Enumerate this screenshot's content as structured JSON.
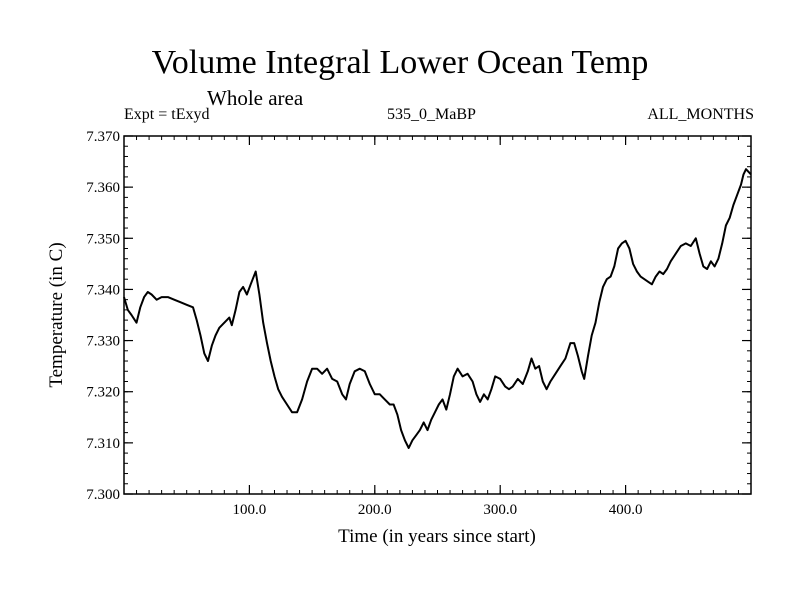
{
  "chart_data": {
    "type": "line",
    "title": "Volume Integral Lower Ocean Temp",
    "subtitle": "Whole area",
    "header_left": "Expt = tExyd",
    "header_center": "535_0_MaBP",
    "header_right": "ALL_MONTHS",
    "xlabel": "Time (in years since start)",
    "ylabel": "Temperature (in C)",
    "xlim": [
      0,
      500
    ],
    "ylim": [
      7.3,
      7.37
    ],
    "x_ticks": [
      100,
      200,
      300,
      400
    ],
    "x_tick_labels": [
      "100.0",
      "200.0",
      "300.0",
      "400.0"
    ],
    "y_ticks": [
      7.3,
      7.31,
      7.32,
      7.33,
      7.34,
      7.35,
      7.36,
      7.37
    ],
    "y_tick_labels": [
      "7.300",
      "7.310",
      "7.320",
      "7.330",
      "7.340",
      "7.350",
      "7.360",
      "7.370"
    ],
    "grid": false,
    "series": [
      {
        "line_color": "#000000",
        "points": [
          [
            0,
            7.3385
          ],
          [
            3,
            7.336
          ],
          [
            6,
            7.335
          ],
          [
            10,
            7.3335
          ],
          [
            13,
            7.3365
          ],
          [
            16,
            7.3385
          ],
          [
            19,
            7.3395
          ],
          [
            22,
            7.339
          ],
          [
            26,
            7.338
          ],
          [
            30,
            7.3385
          ],
          [
            35,
            7.3385
          ],
          [
            40,
            7.338
          ],
          [
            45,
            7.3375
          ],
          [
            50,
            7.337
          ],
          [
            55,
            7.3365
          ],
          [
            58,
            7.334
          ],
          [
            61,
            7.331
          ],
          [
            64,
            7.3275
          ],
          [
            67,
            7.326
          ],
          [
            70,
            7.329
          ],
          [
            73,
            7.331
          ],
          [
            76,
            7.3325
          ],
          [
            80,
            7.3335
          ],
          [
            84,
            7.3345
          ],
          [
            86,
            7.333
          ],
          [
            89,
            7.336
          ],
          [
            92,
            7.3395
          ],
          [
            95,
            7.3405
          ],
          [
            98,
            7.339
          ],
          [
            101,
            7.341
          ],
          [
            105,
            7.3435
          ],
          [
            108,
            7.339
          ],
          [
            111,
            7.3335
          ],
          [
            114,
            7.3295
          ],
          [
            117,
            7.326
          ],
          [
            120,
            7.323
          ],
          [
            123,
            7.3205
          ],
          [
            126,
            7.319
          ],
          [
            130,
            7.3175
          ],
          [
            134,
            7.316
          ],
          [
            138,
            7.316
          ],
          [
            142,
            7.3185
          ],
          [
            146,
            7.322
          ],
          [
            150,
            7.3245
          ],
          [
            154,
            7.3245
          ],
          [
            158,
            7.3235
          ],
          [
            162,
            7.3245
          ],
          [
            166,
            7.3225
          ],
          [
            170,
            7.322
          ],
          [
            174,
            7.3195
          ],
          [
            177,
            7.3185
          ],
          [
            180,
            7.3215
          ],
          [
            184,
            7.324
          ],
          [
            188,
            7.3245
          ],
          [
            192,
            7.324
          ],
          [
            196,
            7.3215
          ],
          [
            200,
            7.3195
          ],
          [
            204,
            7.3195
          ],
          [
            208,
            7.3185
          ],
          [
            212,
            7.3175
          ],
          [
            215,
            7.3175
          ],
          [
            218,
            7.3155
          ],
          [
            221,
            7.3125
          ],
          [
            224,
            7.3105
          ],
          [
            227,
            7.309
          ],
          [
            230,
            7.3105
          ],
          [
            233,
            7.3115
          ],
          [
            236,
            7.3125
          ],
          [
            239,
            7.314
          ],
          [
            242,
            7.3125
          ],
          [
            245,
            7.3145
          ],
          [
            248,
            7.316
          ],
          [
            251,
            7.3175
          ],
          [
            254,
            7.3185
          ],
          [
            257,
            7.3165
          ],
          [
            260,
            7.3195
          ],
          [
            263,
            7.323
          ],
          [
            266,
            7.3245
          ],
          [
            270,
            7.323
          ],
          [
            274,
            7.3235
          ],
          [
            278,
            7.322
          ],
          [
            281,
            7.3195
          ],
          [
            284,
            7.318
          ],
          [
            287,
            7.3195
          ],
          [
            290,
            7.3185
          ],
          [
            293,
            7.3205
          ],
          [
            296,
            7.323
          ],
          [
            300,
            7.3225
          ],
          [
            304,
            7.321
          ],
          [
            307,
            7.3205
          ],
          [
            310,
            7.321
          ],
          [
            314,
            7.3225
          ],
          [
            318,
            7.3215
          ],
          [
            322,
            7.324
          ],
          [
            325,
            7.3265
          ],
          [
            328,
            7.3245
          ],
          [
            331,
            7.325
          ],
          [
            334,
            7.322
          ],
          [
            337,
            7.3205
          ],
          [
            340,
            7.322
          ],
          [
            344,
            7.3235
          ],
          [
            348,
            7.325
          ],
          [
            352,
            7.3265
          ],
          [
            356,
            7.3295
          ],
          [
            359,
            7.3295
          ],
          [
            362,
            7.327
          ],
          [
            365,
            7.324
          ],
          [
            367,
            7.3225
          ],
          [
            370,
            7.327
          ],
          [
            373,
            7.331
          ],
          [
            376,
            7.3335
          ],
          [
            379,
            7.3375
          ],
          [
            382,
            7.3405
          ],
          [
            385,
            7.342
          ],
          [
            388,
            7.3425
          ],
          [
            391,
            7.3445
          ],
          [
            394,
            7.348
          ],
          [
            397,
            7.349
          ],
          [
            400,
            7.3495
          ],
          [
            403,
            7.348
          ],
          [
            406,
            7.345
          ],
          [
            409,
            7.3435
          ],
          [
            412,
            7.3425
          ],
          [
            415,
            7.342
          ],
          [
            418,
            7.3415
          ],
          [
            421,
            7.341
          ],
          [
            424,
            7.3425
          ],
          [
            427,
            7.3435
          ],
          [
            430,
            7.343
          ],
          [
            433,
            7.344
          ],
          [
            436,
            7.3455
          ],
          [
            440,
            7.347
          ],
          [
            444,
            7.3485
          ],
          [
            448,
            7.349
          ],
          [
            452,
            7.3485
          ],
          [
            456,
            7.35
          ],
          [
            459,
            7.347
          ],
          [
            462,
            7.3445
          ],
          [
            465,
            7.344
          ],
          [
            468,
            7.3455
          ],
          [
            471,
            7.3445
          ],
          [
            474,
            7.346
          ],
          [
            477,
            7.349
          ],
          [
            480,
            7.3525
          ],
          [
            483,
            7.354
          ],
          [
            486,
            7.3565
          ],
          [
            489,
            7.3585
          ],
          [
            492,
            7.3605
          ],
          [
            494,
            7.3625
          ],
          [
            496,
            7.3635
          ],
          [
            500,
            7.3625
          ]
        ]
      }
    ]
  }
}
